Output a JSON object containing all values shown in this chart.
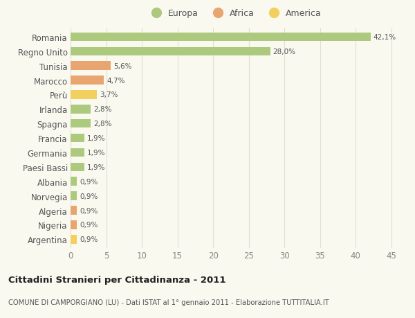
{
  "countries": [
    "Romania",
    "Regno Unito",
    "Tunisia",
    "Marocco",
    "Perù",
    "Irlanda",
    "Spagna",
    "Francia",
    "Germania",
    "Paesi Bassi",
    "Albania",
    "Norvegia",
    "Algeria",
    "Nigeria",
    "Argentina"
  ],
  "values": [
    42.1,
    28.0,
    5.6,
    4.7,
    3.7,
    2.8,
    2.8,
    1.9,
    1.9,
    1.9,
    0.9,
    0.9,
    0.9,
    0.9,
    0.9
  ],
  "labels": [
    "42,1%",
    "28,0%",
    "5,6%",
    "4,7%",
    "3,7%",
    "2,8%",
    "2,8%",
    "1,9%",
    "1,9%",
    "1,9%",
    "0,9%",
    "0,9%",
    "0,9%",
    "0,9%",
    "0,9%"
  ],
  "continents": [
    "Europa",
    "Europa",
    "Africa",
    "Africa",
    "America",
    "Europa",
    "Europa",
    "Europa",
    "Europa",
    "Europa",
    "Europa",
    "Europa",
    "Africa",
    "Africa",
    "America"
  ],
  "colors": {
    "Europa": "#adc97e",
    "Africa": "#e8a570",
    "America": "#f2d060"
  },
  "xlim": [
    0,
    46
  ],
  "xticks": [
    0,
    5,
    10,
    15,
    20,
    25,
    30,
    35,
    40,
    45
  ],
  "title": "Cittadini Stranieri per Cittadinanza - 2011",
  "subtitle": "COMUNE DI CAMPORGIANO (LU) - Dati ISTAT al 1° gennaio 2011 - Elaborazione TUTTITALIA.IT",
  "bg_color": "#f9f9f0",
  "grid_color": "#e0e0d0",
  "bar_height": 0.6,
  "legend_labels": [
    "Europa",
    "Africa",
    "America"
  ],
  "legend_colors": [
    "#adc97e",
    "#e8a570",
    "#f2d060"
  ]
}
